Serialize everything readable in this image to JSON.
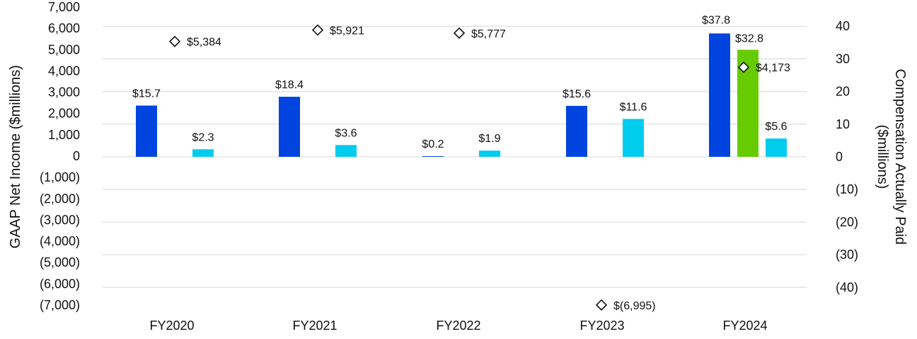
{
  "chart_data": {
    "type": "bar",
    "categories": [
      "FY2020",
      "FY2021",
      "FY2022",
      "FY2023",
      "FY2024"
    ],
    "series": [
      {
        "axis": "right",
        "color": "#0044e0",
        "values": [
          15.7,
          18.4,
          0.2,
          15.6,
          37.8
        ],
        "labels": [
          "$15.7",
          "$18.4",
          "$0.2",
          "$15.6",
          "$37.8"
        ]
      },
      {
        "axis": "right",
        "color": "#66cc00",
        "values": [
          null,
          null,
          null,
          null,
          32.8
        ],
        "labels": [
          null,
          null,
          null,
          null,
          "$32.8"
        ]
      },
      {
        "axis": "right",
        "color": "#00ccee",
        "values": [
          2.3,
          3.6,
          1.9,
          11.6,
          5.6
        ],
        "labels": [
          "$2.3",
          "$3.6",
          "$1.9",
          "$11.6",
          "$5.6"
        ]
      },
      {
        "axis": "left",
        "marker": "diamond",
        "values": [
          5384,
          5921,
          5777,
          -6995,
          4173
        ],
        "labels": [
          "$5,384",
          "$5,921",
          "$5,777",
          "$(6,995)",
          "$4,173"
        ]
      }
    ],
    "left_axis": {
      "label": "GAAP Net Income ($millions)",
      "ylim": [
        -7000,
        7000
      ],
      "ticks": [
        "7,000",
        "6,000",
        "5,000",
        "4,000",
        "3,000",
        "2,000",
        "1,000",
        "0",
        "(1,000)",
        "(2,000)",
        "(3,000)",
        "(4,000)",
        "(5,000)",
        "(6,000)",
        "(7,000)"
      ]
    },
    "right_axis": {
      "label_lines": [
        "Compensation Actually Paid",
        "($millions)"
      ],
      "ylim": [
        -40,
        40
      ],
      "ticks": [
        {
          "value": 40,
          "label": "40"
        },
        {
          "value": 30,
          "label": "30"
        },
        {
          "value": 20,
          "label": "20"
        },
        {
          "value": 10,
          "label": "10"
        },
        {
          "value": 0,
          "label": "0"
        },
        {
          "value": -10,
          "label": "(10)"
        },
        {
          "value": -20,
          "label": "(20)"
        },
        {
          "value": -30,
          "label": "(30)"
        },
        {
          "value": -40,
          "label": "(40)"
        }
      ]
    },
    "grid": true,
    "legend": "none"
  }
}
